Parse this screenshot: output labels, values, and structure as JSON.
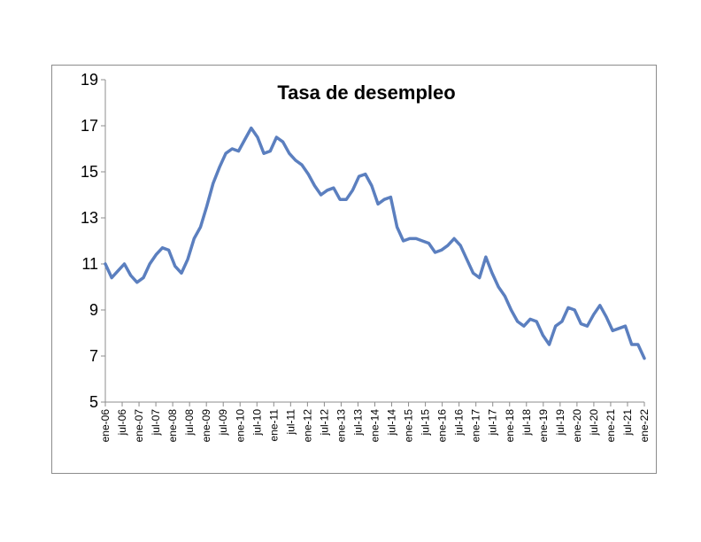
{
  "chart_data": {
    "type": "line",
    "title": "Tasa de desempleo",
    "xlabel": "",
    "ylabel": "",
    "ylim": [
      5,
      19
    ],
    "y_ticks": [
      "5",
      "7",
      "9",
      "11",
      "13",
      "15",
      "17",
      "19"
    ],
    "x_tick_labels": [
      "ene-06",
      "jul-06",
      "ene-07",
      "jul-07",
      "ene-08",
      "jul-08",
      "ene-09",
      "jul-09",
      "ene-10",
      "jul-10",
      "ene-11",
      "jul-11",
      "ene-12",
      "jul-12",
      "ene-13",
      "jul-13",
      "ene-14",
      "jul-14",
      "ene-15",
      "jul-15",
      "ene-16",
      "jul-16",
      "ene-17",
      "jul-17",
      "ene-18",
      "jul-18",
      "ene-19",
      "jul-19",
      "ene-20",
      "jul-20",
      "ene-21",
      "jul-21",
      "ene-22"
    ],
    "grid": false,
    "legend": "none",
    "line_color": "#5b7fbf",
    "series": [
      {
        "values": [
          [
            0,
            11.0
          ],
          [
            2,
            10.4
          ],
          [
            4,
            10.7
          ],
          [
            6,
            11.0
          ],
          [
            8,
            10.5
          ],
          [
            10,
            10.2
          ],
          [
            12,
            10.4
          ],
          [
            14,
            11.0
          ],
          [
            16,
            11.4
          ],
          [
            18,
            11.7
          ],
          [
            20,
            11.6
          ],
          [
            22,
            10.9
          ],
          [
            24,
            10.6
          ],
          [
            26,
            11.2
          ],
          [
            28,
            12.1
          ],
          [
            30,
            12.6
          ],
          [
            32,
            13.5
          ],
          [
            34,
            14.5
          ],
          [
            36,
            15.2
          ],
          [
            38,
            15.8
          ],
          [
            40,
            16.0
          ],
          [
            42,
            15.9
          ],
          [
            44,
            16.4
          ],
          [
            46,
            16.9
          ],
          [
            48,
            16.5
          ],
          [
            50,
            15.8
          ],
          [
            52,
            15.9
          ],
          [
            54,
            16.5
          ],
          [
            56,
            16.3
          ],
          [
            58,
            15.8
          ],
          [
            60,
            15.5
          ],
          [
            62,
            15.3
          ],
          [
            64,
            14.9
          ],
          [
            66,
            14.4
          ],
          [
            68,
            14.0
          ],
          [
            70,
            14.2
          ],
          [
            72,
            14.3
          ],
          [
            74,
            13.8
          ],
          [
            76,
            13.8
          ],
          [
            78,
            14.2
          ],
          [
            80,
            14.8
          ],
          [
            82,
            14.9
          ],
          [
            84,
            14.4
          ],
          [
            86,
            13.6
          ],
          [
            88,
            13.8
          ],
          [
            90,
            13.9
          ],
          [
            92,
            12.6
          ],
          [
            94,
            12.0
          ],
          [
            96,
            12.1
          ],
          [
            98,
            12.1
          ],
          [
            100,
            12.0
          ],
          [
            102,
            11.9
          ],
          [
            104,
            11.5
          ],
          [
            106,
            11.6
          ],
          [
            108,
            11.8
          ],
          [
            110,
            12.1
          ],
          [
            112,
            11.8
          ],
          [
            114,
            11.2
          ],
          [
            116,
            10.6
          ],
          [
            118,
            10.4
          ],
          [
            120,
            11.3
          ],
          [
            122,
            10.6
          ],
          [
            124,
            10.0
          ],
          [
            126,
            9.6
          ],
          [
            128,
            9.0
          ],
          [
            130,
            8.5
          ],
          [
            132,
            8.3
          ],
          [
            134,
            8.6
          ],
          [
            136,
            8.5
          ],
          [
            138,
            7.9
          ],
          [
            140,
            7.5
          ],
          [
            142,
            8.3
          ],
          [
            144,
            8.5
          ],
          [
            146,
            9.1
          ],
          [
            148,
            9.0
          ],
          [
            150,
            8.4
          ],
          [
            152,
            8.3
          ],
          [
            154,
            8.8
          ],
          [
            156,
            9.2
          ],
          [
            158,
            8.7
          ],
          [
            160,
            8.1
          ],
          [
            162,
            8.2
          ],
          [
            164,
            8.3
          ],
          [
            166,
            7.5
          ],
          [
            168,
            7.5
          ],
          [
            170,
            6.9
          ]
        ]
      }
    ],
    "x_index_note_hidden": ""
  }
}
